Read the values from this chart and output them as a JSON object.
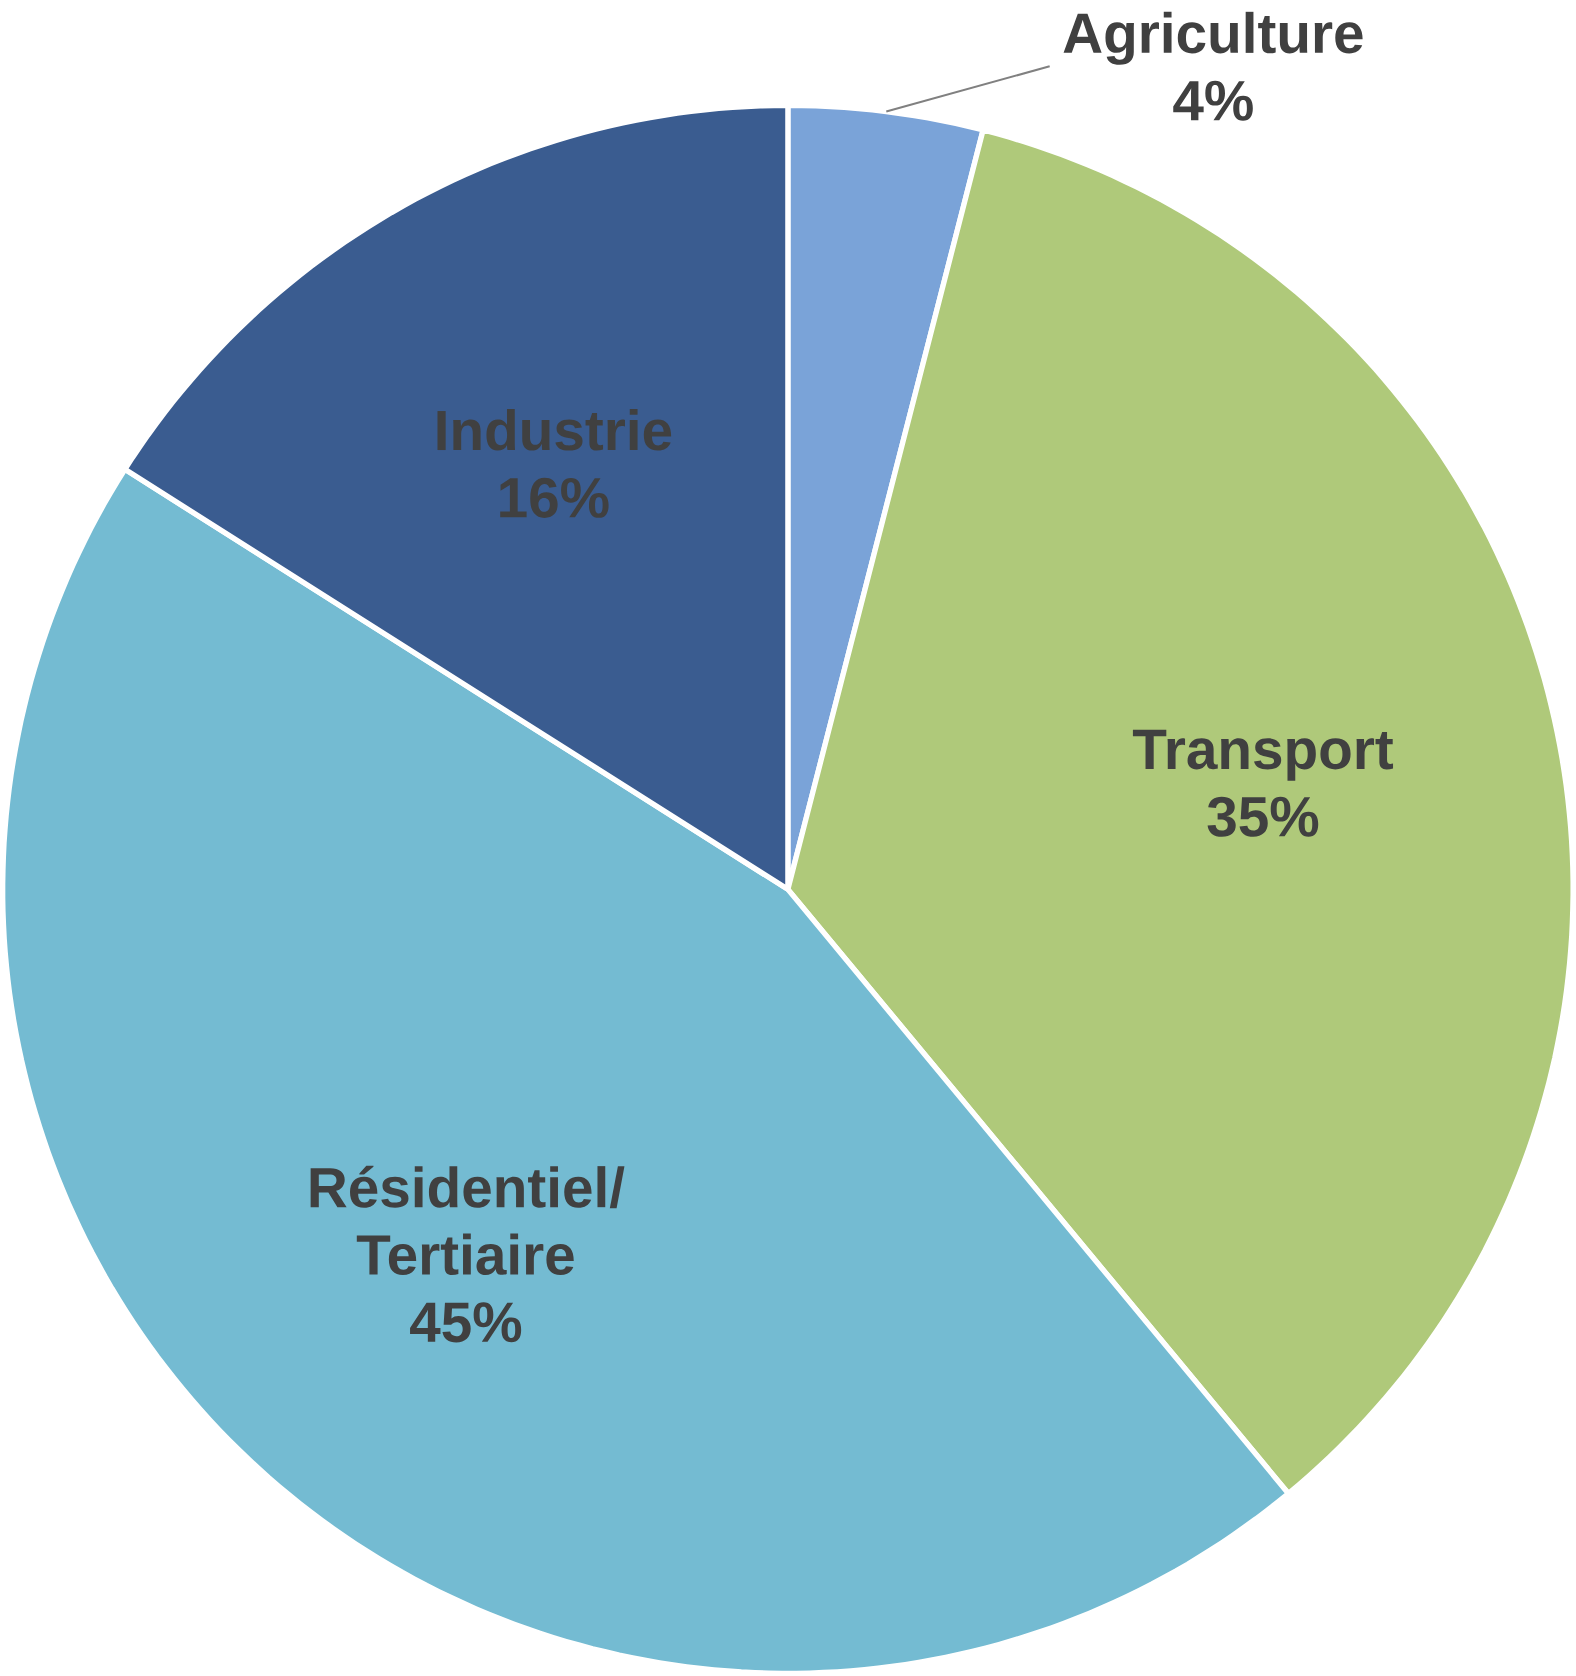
{
  "chart_data": {
    "type": "pie",
    "categories": [
      "Agriculture",
      "Transport",
      "Résidentiel/ Tertiaire",
      "Industrie"
    ],
    "values": [
      4,
      35,
      45,
      16
    ],
    "value_labels": [
      "4%",
      "35%",
      "45%",
      "16%"
    ],
    "colors": [
      "#7aa3d8",
      "#afc97a",
      "#74bbd2",
      "#3a5c90"
    ]
  }
}
